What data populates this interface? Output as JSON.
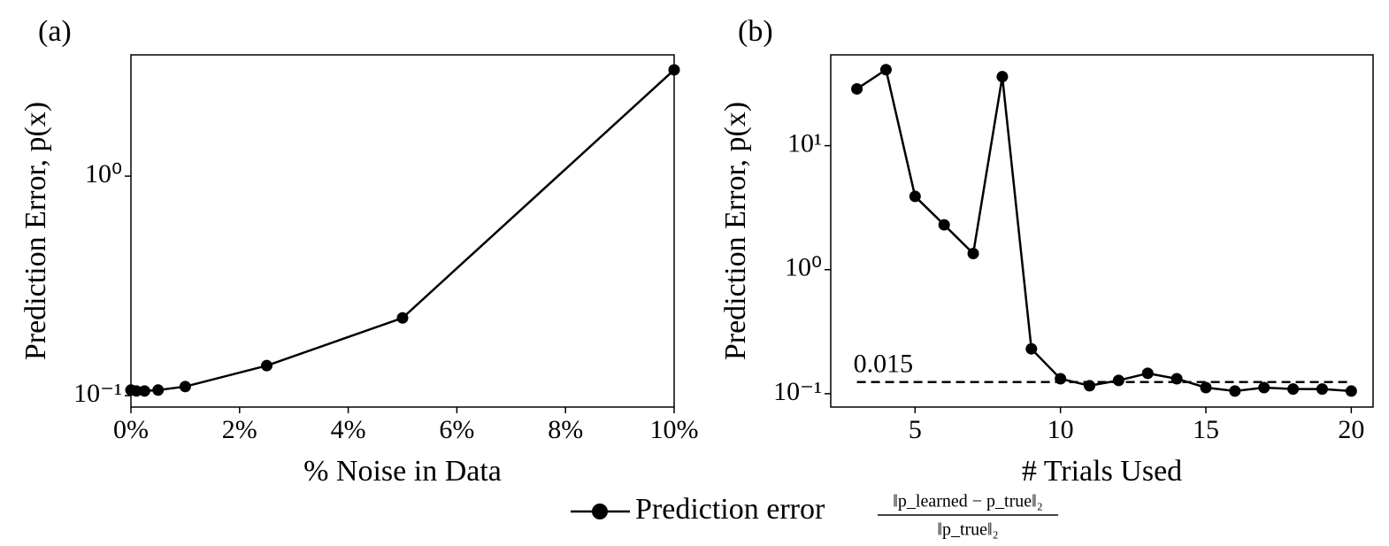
{
  "chart_data": [
    {
      "type": "line",
      "title": "(a)",
      "xlabel": "% Noise in Data",
      "ylabel": "Prediction Error, p(x)",
      "x": [
        0,
        0.1,
        0.25,
        0.5,
        1,
        2.5,
        5,
        10
      ],
      "values": [
        0.106,
        0.105,
        0.105,
        0.106,
        0.11,
        0.137,
        0.226,
        3.05
      ],
      "color": "#000000",
      "yscale": "log",
      "xlim": [
        0,
        10
      ],
      "xticks": [
        {
          "value": 0,
          "label": "0%"
        },
        {
          "value": 2,
          "label": "2%"
        },
        {
          "value": 4,
          "label": "4%"
        },
        {
          "value": 6,
          "label": "6%"
        },
        {
          "value": 8,
          "label": "8%"
        },
        {
          "value": 10,
          "label": "10%"
        }
      ],
      "ylim": [
        0.0887,
        3.57
      ],
      "yticks": [
        {
          "value": 0.1,
          "label": "10⁻¹"
        },
        {
          "value": 1,
          "label": "10⁰"
        }
      ]
    },
    {
      "type": "line",
      "title": "(b)",
      "xlabel": "# Trials Used",
      "ylabel": "Prediction Error, p(x)",
      "x": [
        3,
        4,
        5,
        6,
        7,
        8,
        9,
        10,
        11,
        12,
        13,
        14,
        15,
        16,
        17,
        18,
        19,
        20
      ],
      "values": [
        28.7,
        41,
        3.9,
        2.3,
        1.35,
        36,
        0.23,
        0.132,
        0.116,
        0.128,
        0.146,
        0.132,
        0.112,
        0.105,
        0.112,
        0.109,
        0.109,
        0.105
      ],
      "color": "#000000",
      "yscale": "log",
      "hline": 0.124,
      "annotation": "0.015",
      "xlim": [
        2.1,
        20.75
      ],
      "xticks": [
        5,
        10,
        15,
        20
      ],
      "ylim": [
        0.078,
        54
      ],
      "yticks": [
        {
          "value": 0.1,
          "label": "10⁻¹"
        },
        {
          "value": 1,
          "label": "10⁰"
        },
        {
          "value": 10,
          "label": "10¹"
        }
      ]
    }
  ],
  "legend": {
    "label": "Prediction error",
    "numerator": "‖p_learned − p_true‖₂",
    "denominator": "‖p_true‖₂"
  }
}
